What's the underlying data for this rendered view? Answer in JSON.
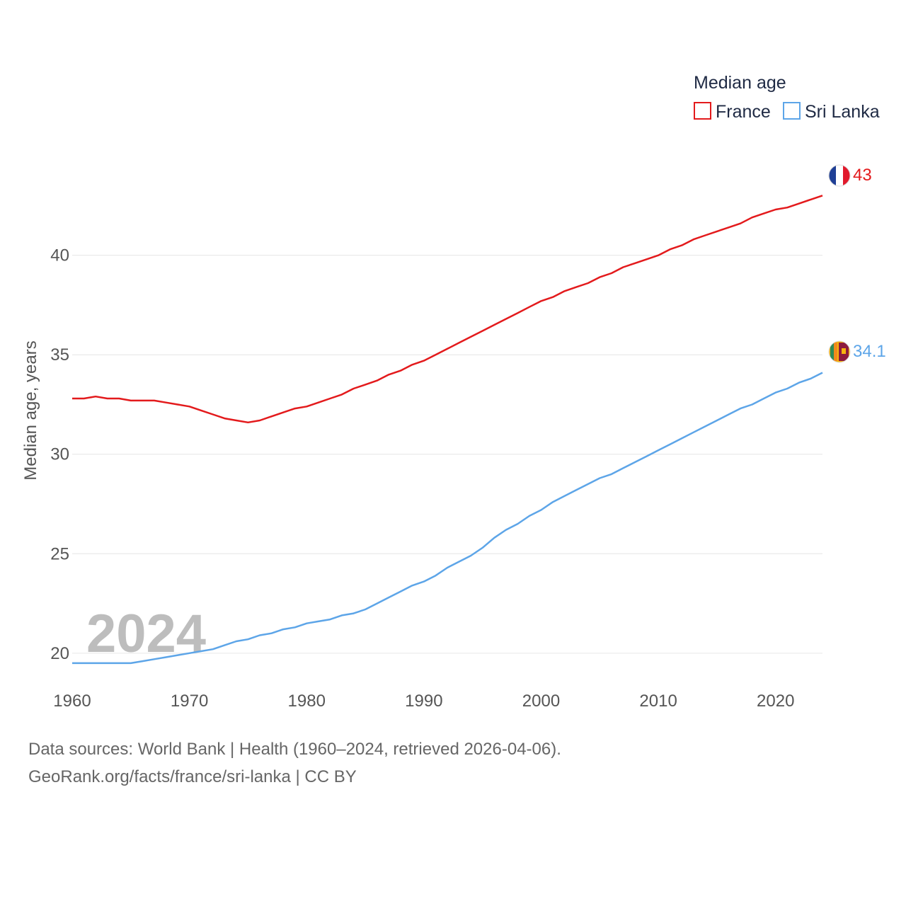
{
  "chart_data": {
    "type": "line",
    "legend_title": "Median age",
    "ylabel": "Median age, years",
    "xlabel": "",
    "year_watermark": "2024",
    "ylim": [
      18.5,
      46
    ],
    "xlim": [
      1960,
      2024
    ],
    "x_ticks": [
      1960,
      1970,
      1980,
      1990,
      2000,
      2010,
      2020
    ],
    "y_ticks": [
      20,
      25,
      30,
      35,
      40
    ],
    "grid": true,
    "legend_position": "top-right",
    "x": [
      1960,
      1961,
      1962,
      1963,
      1964,
      1965,
      1966,
      1967,
      1968,
      1969,
      1970,
      1971,
      1972,
      1973,
      1974,
      1975,
      1976,
      1977,
      1978,
      1979,
      1980,
      1981,
      1982,
      1983,
      1984,
      1985,
      1986,
      1987,
      1988,
      1989,
      1990,
      1991,
      1992,
      1993,
      1994,
      1995,
      1996,
      1997,
      1998,
      1999,
      2000,
      2001,
      2002,
      2003,
      2004,
      2005,
      2006,
      2007,
      2008,
      2009,
      2010,
      2011,
      2012,
      2013,
      2014,
      2015,
      2016,
      2017,
      2018,
      2019,
      2020,
      2021,
      2022,
      2023,
      2024
    ],
    "series": [
      {
        "name": "France",
        "color": "#e31a1c",
        "flag": "france-flag",
        "end_label": "43",
        "values": [
          32.8,
          32.8,
          32.9,
          32.8,
          32.8,
          32.7,
          32.7,
          32.7,
          32.6,
          32.5,
          32.4,
          32.2,
          32.0,
          31.8,
          31.7,
          31.6,
          31.7,
          31.9,
          32.1,
          32.3,
          32.4,
          32.6,
          32.8,
          33.0,
          33.3,
          33.5,
          33.7,
          34.0,
          34.2,
          34.5,
          34.7,
          35.0,
          35.3,
          35.6,
          35.9,
          36.2,
          36.5,
          36.8,
          37.1,
          37.4,
          37.7,
          37.9,
          38.2,
          38.4,
          38.6,
          38.9,
          39.1,
          39.4,
          39.6,
          39.8,
          40.0,
          40.3,
          40.5,
          40.8,
          41.0,
          41.2,
          41.4,
          41.6,
          41.9,
          42.1,
          42.3,
          42.4,
          42.6,
          42.8,
          43.0
        ]
      },
      {
        "name": "Sri Lanka",
        "color": "#5da5e8",
        "flag": "sri-lanka-flag",
        "end_label": "34.1",
        "values": [
          19.5,
          19.5,
          19.5,
          19.5,
          19.5,
          19.5,
          19.6,
          19.7,
          19.8,
          19.9,
          20.0,
          20.1,
          20.2,
          20.4,
          20.6,
          20.7,
          20.9,
          21.0,
          21.2,
          21.3,
          21.5,
          21.6,
          21.7,
          21.9,
          22.0,
          22.2,
          22.5,
          22.8,
          23.1,
          23.4,
          23.6,
          23.9,
          24.3,
          24.6,
          24.9,
          25.3,
          25.8,
          26.2,
          26.5,
          26.9,
          27.2,
          27.6,
          27.9,
          28.2,
          28.5,
          28.8,
          29.0,
          29.3,
          29.6,
          29.9,
          30.2,
          30.5,
          30.8,
          31.1,
          31.4,
          31.7,
          32.0,
          32.3,
          32.5,
          32.8,
          33.1,
          33.3,
          33.6,
          33.8,
          34.1
        ]
      }
    ]
  },
  "footer": {
    "line1": "Data sources: World Bank | Health (1960–2024, retrieved 2026-04-06).",
    "line2": "GeoRank.org/facts/france/sri-lanka | CC BY"
  }
}
